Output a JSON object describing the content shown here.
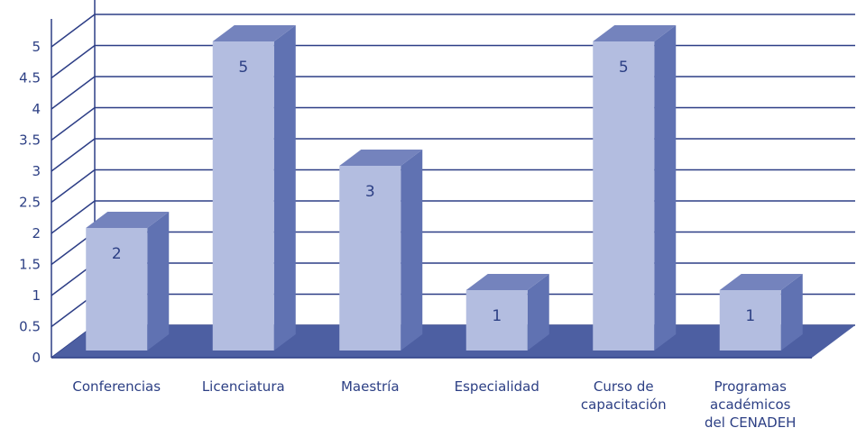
{
  "chart_data": {
    "type": "bar",
    "title": "",
    "xlabel": "",
    "ylabel": "",
    "categories": [
      [
        "Conferencias"
      ],
      [
        "Licenciatura"
      ],
      [
        "Maestría"
      ],
      [
        "Especialidad"
      ],
      [
        "Curso de",
        "capacitación"
      ],
      [
        "Programas",
        "académicos",
        "del CENADEH"
      ]
    ],
    "values": [
      2,
      5,
      3,
      1,
      5,
      1
    ],
    "data_labels": [
      "2",
      "5",
      "3",
      "1",
      "5",
      "1"
    ],
    "ylim": [
      0,
      5
    ],
    "yticks": [
      {
        "value": 0,
        "label": "0"
      },
      {
        "value": 0.5,
        "label": "0.5"
      },
      {
        "value": 1,
        "label": "1"
      },
      {
        "value": 1.5,
        "label": "1.5"
      },
      {
        "value": 2,
        "label": "2"
      },
      {
        "value": 2.5,
        "label": "2.5"
      },
      {
        "value": 3,
        "label": "3"
      },
      {
        "value": 3.5,
        "label": "3.5"
      },
      {
        "value": 4,
        "label": "4"
      },
      {
        "value": 4.5,
        "label": "4.5"
      },
      {
        "value": 5,
        "label": "5"
      }
    ],
    "grid": true,
    "style": "3d-bar",
    "colors": {
      "bar_front": "#b3bde0",
      "bar_top": "#7483bd",
      "bar_side": "#6072b2",
      "floor": "#4d5fa2",
      "grid": "#2d3e86",
      "text": "#2c3f84"
    }
  }
}
